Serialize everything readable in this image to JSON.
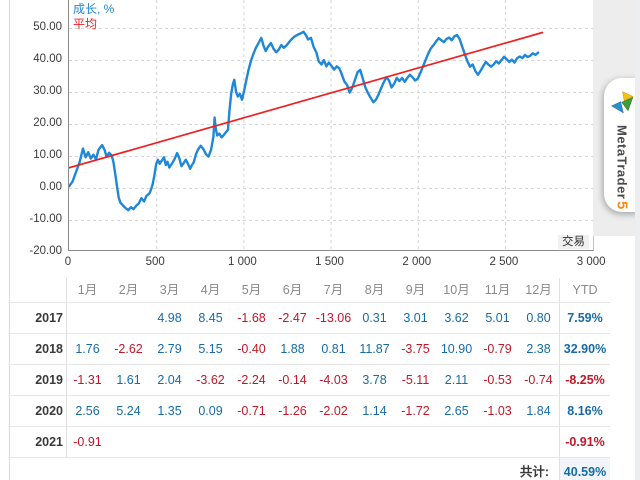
{
  "chart": {
    "legend": [
      {
        "label": "成长, %",
        "color": "#1f87d7"
      },
      {
        "label": "平均",
        "color": "#ef2020"
      }
    ],
    "x_axis_unit_label": "交易",
    "y_ticks": [
      "50.00",
      "40.00",
      "30.00",
      "20.00",
      "10.00",
      "0.00",
      "-10.00",
      "-20.00"
    ],
    "x_ticks": [
      {
        "label": "0",
        "value": 0
      },
      {
        "label": "500",
        "value": 500
      },
      {
        "label": "1 000",
        "value": 1000
      },
      {
        "label": "1 500",
        "value": 1500
      },
      {
        "label": "2 000",
        "value": 2000
      },
      {
        "label": "2 500",
        "value": 2500
      },
      {
        "label": "3 000",
        "value": 3000
      }
    ]
  },
  "chart_data": {
    "type": "line",
    "title": "成长, %",
    "xlabel": "交易",
    "ylabel": "成长 %",
    "xlim": [
      0,
      3005
    ],
    "ylim": [
      -20,
      58
    ],
    "grid": {
      "h_values": [
        50,
        40,
        30,
        20,
        10,
        0,
        -10
      ],
      "v_values": [
        500,
        1000,
        1500,
        2000,
        2500
      ]
    },
    "legend_position": "top-left",
    "series": [
      {
        "name": "成长, %",
        "color": "#1f87d7",
        "width": 2.4,
        "points": [
          [
            0,
            0.5
          ],
          [
            20,
            2
          ],
          [
            40,
            5
          ],
          [
            60,
            8
          ],
          [
            80,
            12.3
          ],
          [
            95,
            9.6
          ],
          [
            110,
            11.2
          ],
          [
            125,
            9.2
          ],
          [
            140,
            10.4
          ],
          [
            155,
            9.0
          ],
          [
            170,
            12.0
          ],
          [
            190,
            13.4
          ],
          [
            205,
            11.8
          ],
          [
            215,
            9.8
          ],
          [
            230,
            11.0
          ],
          [
            245,
            10.2
          ],
          [
            255,
            8.0
          ],
          [
            265,
            4.5
          ],
          [
            275,
            0.5
          ],
          [
            285,
            -3.0
          ],
          [
            295,
            -4.6
          ],
          [
            310,
            -5.5
          ],
          [
            325,
            -6.3
          ],
          [
            340,
            -6.9
          ],
          [
            355,
            -6.0
          ],
          [
            370,
            -6.6
          ],
          [
            385,
            -5.6
          ],
          [
            400,
            -4.8
          ],
          [
            415,
            -3.2
          ],
          [
            430,
            -4.2
          ],
          [
            445,
            -2.4
          ],
          [
            460,
            -1.8
          ],
          [
            470,
            -0.5
          ],
          [
            480,
            1.2
          ],
          [
            490,
            4.0
          ],
          [
            500,
            7.5
          ],
          [
            510,
            8.8
          ],
          [
            520,
            7.6
          ],
          [
            530,
            8.4
          ],
          [
            545,
            9.6
          ],
          [
            555,
            7.2
          ],
          [
            565,
            8.2
          ],
          [
            575,
            6.4
          ],
          [
            590,
            7.6
          ],
          [
            605,
            9.0
          ],
          [
            620,
            10.9
          ],
          [
            632,
            9.4
          ],
          [
            645,
            6.8
          ],
          [
            658,
            7.8
          ],
          [
            670,
            8.8
          ],
          [
            682,
            7.6
          ],
          [
            695,
            6.0
          ],
          [
            705,
            7.2
          ],
          [
            715,
            8.0
          ],
          [
            728,
            10.5
          ],
          [
            740,
            12.0
          ],
          [
            755,
            13.2
          ],
          [
            770,
            12.2
          ],
          [
            785,
            10.6
          ],
          [
            800,
            9.8
          ],
          [
            815,
            12.0
          ],
          [
            828,
            16.0
          ],
          [
            835,
            22.0
          ],
          [
            842,
            18.5
          ],
          [
            850,
            16.4
          ],
          [
            862,
            17.0
          ],
          [
            875,
            15.8
          ],
          [
            888,
            16.6
          ],
          [
            900,
            17.4
          ],
          [
            912,
            18.2
          ],
          [
            920,
            24.0
          ],
          [
            930,
            29.5
          ],
          [
            940,
            32.5
          ],
          [
            948,
            33.8
          ],
          [
            958,
            30.0
          ],
          [
            968,
            28.6
          ],
          [
            980,
            29.4
          ],
          [
            992,
            27.6
          ],
          [
            1005,
            30.5
          ],
          [
            1018,
            34.0
          ],
          [
            1030,
            37.0
          ],
          [
            1045,
            40.0
          ],
          [
            1058,
            42.0
          ],
          [
            1072,
            43.8
          ],
          [
            1088,
            45.4
          ],
          [
            1103,
            46.9
          ],
          [
            1115,
            44.6
          ],
          [
            1128,
            42.8
          ],
          [
            1142,
            44.2
          ],
          [
            1158,
            45.3
          ],
          [
            1172,
            43.6
          ],
          [
            1188,
            42.4
          ],
          [
            1202,
            43.2
          ],
          [
            1218,
            44.7
          ],
          [
            1232,
            43.8
          ],
          [
            1248,
            44.6
          ],
          [
            1262,
            45.6
          ],
          [
            1278,
            46.6
          ],
          [
            1295,
            47.4
          ],
          [
            1315,
            48.0
          ],
          [
            1332,
            48.4
          ],
          [
            1345,
            48.8
          ],
          [
            1358,
            47.8
          ],
          [
            1372,
            46.4
          ],
          [
            1388,
            46.9
          ],
          [
            1402,
            44.2
          ],
          [
            1418,
            42.4
          ],
          [
            1432,
            39.6
          ],
          [
            1448,
            38.6
          ],
          [
            1462,
            40.0
          ],
          [
            1476,
            38.0
          ],
          [
            1490,
            39.2
          ],
          [
            1505,
            38.2
          ],
          [
            1520,
            37.0
          ],
          [
            1535,
            38.0
          ],
          [
            1550,
            37.4
          ],
          [
            1565,
            35.4
          ],
          [
            1580,
            33.2
          ],
          [
            1595,
            32.2
          ],
          [
            1610,
            29.8
          ],
          [
            1625,
            31.4
          ],
          [
            1640,
            33.8
          ],
          [
            1655,
            36.2
          ],
          [
            1670,
            36.9
          ],
          [
            1685,
            34.2
          ],
          [
            1700,
            31.4
          ],
          [
            1715,
            29.6
          ],
          [
            1730,
            28.2
          ],
          [
            1745,
            26.8
          ],
          [
            1760,
            27.6
          ],
          [
            1775,
            29.2
          ],
          [
            1790,
            31.2
          ],
          [
            1805,
            33.0
          ],
          [
            1820,
            34.6
          ],
          [
            1835,
            33.6
          ],
          [
            1850,
            31.4
          ],
          [
            1865,
            32.6
          ],
          [
            1880,
            34.4
          ],
          [
            1895,
            33.4
          ],
          [
            1910,
            34.4
          ],
          [
            1925,
            33.2
          ],
          [
            1940,
            34.4
          ],
          [
            1955,
            35.4
          ],
          [
            1970,
            34.6
          ],
          [
            1985,
            33.6
          ],
          [
            2000,
            34.2
          ],
          [
            2015,
            36.0
          ],
          [
            2030,
            38.0
          ],
          [
            2045,
            40.0
          ],
          [
            2060,
            42.0
          ],
          [
            2075,
            43.6
          ],
          [
            2090,
            44.6
          ],
          [
            2105,
            45.8
          ],
          [
            2120,
            46.8
          ],
          [
            2135,
            46.2
          ],
          [
            2150,
            45.6
          ],
          [
            2165,
            46.6
          ],
          [
            2180,
            47.0
          ],
          [
            2195,
            46.2
          ],
          [
            2210,
            47.4
          ],
          [
            2225,
            47.8
          ],
          [
            2240,
            46.6
          ],
          [
            2255,
            44.2
          ],
          [
            2270,
            41.8
          ],
          [
            2285,
            39.6
          ],
          [
            2300,
            37.9
          ],
          [
            2315,
            38.6
          ],
          [
            2330,
            36.6
          ],
          [
            2345,
            35.4
          ],
          [
            2360,
            36.6
          ],
          [
            2375,
            38.0
          ],
          [
            2390,
            39.4
          ],
          [
            2405,
            38.6
          ],
          [
            2420,
            37.9
          ],
          [
            2435,
            38.6
          ],
          [
            2450,
            39.6
          ],
          [
            2465,
            38.9
          ],
          [
            2480,
            40.0
          ],
          [
            2495,
            41.0
          ],
          [
            2510,
            40.2
          ],
          [
            2525,
            39.4
          ],
          [
            2540,
            40.1
          ],
          [
            2555,
            39.2
          ],
          [
            2570,
            40.6
          ],
          [
            2585,
            41.1
          ],
          [
            2600,
            40.6
          ],
          [
            2615,
            41.6
          ],
          [
            2630,
            40.9
          ],
          [
            2645,
            41.3
          ],
          [
            2660,
            42.1
          ],
          [
            2675,
            41.6
          ],
          [
            2690,
            42.3
          ]
        ]
      },
      {
        "name": "平均",
        "color": "#ef2020",
        "width": 1.7,
        "points": [
          [
            0,
            6.3
          ],
          [
            2715,
            48.6
          ]
        ]
      }
    ]
  },
  "table": {
    "month_headers": [
      "1月",
      "2月",
      "3月",
      "4月",
      "5月",
      "6月",
      "7月",
      "8月",
      "9月",
      "10月",
      "11月",
      "12月"
    ],
    "ytd_header": "YTD",
    "rows": [
      {
        "year": "2017",
        "months": [
          "",
          "",
          "4.98",
          "8.45",
          "-1.68",
          "-2.47",
          "-13.06",
          "0.31",
          "3.01",
          "3.62",
          "5.01",
          "0.80"
        ],
        "ytd": "7.59%"
      },
      {
        "year": "2018",
        "months": [
          "1.76",
          "-2.62",
          "2.79",
          "5.15",
          "-0.40",
          "1.88",
          "0.81",
          "11.87",
          "-3.75",
          "10.90",
          "-0.79",
          "2.38"
        ],
        "ytd": "32.90%"
      },
      {
        "year": "2019",
        "months": [
          "-1.31",
          "1.61",
          "2.04",
          "-3.62",
          "-2.24",
          "-0.14",
          "-4.03",
          "3.78",
          "-5.11",
          "2.11",
          "-0.53",
          "-0.74"
        ],
        "ytd": "-8.25%"
      },
      {
        "year": "2020",
        "months": [
          "2.56",
          "5.24",
          "1.35",
          "0.09",
          "-0.71",
          "-1.26",
          "-2.02",
          "1.14",
          "-1.72",
          "2.65",
          "-1.03",
          "1.84"
        ],
        "ytd": "8.16%"
      },
      {
        "year": "2021",
        "months": [
          "-0.91",
          "",
          "",
          "",
          "",
          "",
          "",
          "",
          "",
          "",
          "",
          ""
        ],
        "ytd": "-0.91%"
      }
    ],
    "total_label": "共计:",
    "total_value": "40.59%"
  },
  "side_tab": {
    "brand": "MetaTrader",
    "brand_number": "5"
  },
  "colors": {
    "positive": "#176ba5",
    "negative": "#c01826",
    "brand_orange": "#f78b1e"
  }
}
